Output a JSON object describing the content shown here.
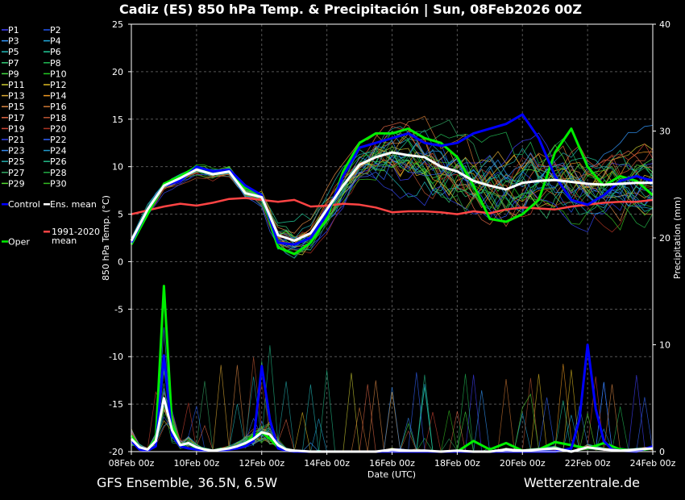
{
  "chart_data": {
    "type": "line",
    "title": "Cadiz  (ES)  850 hPa Temp. & Precipitación | Sun, 08Feb2026 00Z",
    "ylabel_left": "850 hPa Temp. (°C)",
    "ylabel_right": "Precipitation (mm)",
    "xlabel": "Date (UTC)",
    "ylim_left": [
      -20,
      25
    ],
    "ylim_right": [
      0,
      40
    ],
    "yticks_left": [
      25,
      20,
      15,
      10,
      5,
      0,
      -5,
      -10,
      -15,
      -20
    ],
    "yticks_right": [
      40,
      30,
      20,
      10,
      0
    ],
    "x_hours_range": [
      0,
      384
    ],
    "xticks": [
      "08Feb 00z",
      "10Feb 00z",
      "12Feb 00z",
      "14Feb 00z",
      "16Feb 00z",
      "18Feb 00z",
      "20Feb 00z",
      "22Feb 00z",
      "24Feb 00z"
    ],
    "grid": true,
    "footer_left": "GFS Ensemble, 36.5N, 6.5W",
    "footer_right": "Wetterzentrale.de",
    "legend": [
      {
        "label": "P1",
        "color": "#4040ff"
      },
      {
        "label": "P2",
        "color": "#2255ee"
      },
      {
        "label": "P3",
        "color": "#3399ff"
      },
      {
        "label": "P4",
        "color": "#22aadd"
      },
      {
        "label": "P5",
        "color": "#22bbbb"
      },
      {
        "label": "P6",
        "color": "#22cc99"
      },
      {
        "label": "P7",
        "color": "#33cc77"
      },
      {
        "label": "P8",
        "color": "#22bb55"
      },
      {
        "label": "P9",
        "color": "#44dd44"
      },
      {
        "label": "P10",
        "color": "#22cc22"
      },
      {
        "label": "P11",
        "color": "#cccc33"
      },
      {
        "label": "P12",
        "color": "#ddbb22"
      },
      {
        "label": "P13",
        "color": "#ddaa33"
      },
      {
        "label": "P14",
        "color": "#ee9922"
      },
      {
        "label": "P15",
        "color": "#dd8844"
      },
      {
        "label": "P16",
        "color": "#cc7733"
      },
      {
        "label": "P17",
        "color": "#dd6644"
      },
      {
        "label": "P18",
        "color": "#bb5533"
      },
      {
        "label": "P19",
        "color": "#cc4433"
      },
      {
        "label": "P20",
        "color": "#aa3322"
      },
      {
        "label": "P21",
        "color": "#3344ee"
      },
      {
        "label": "P22",
        "color": "#3366ff"
      },
      {
        "label": "P23",
        "color": "#3388ee"
      },
      {
        "label": "P24",
        "color": "#2299cc"
      },
      {
        "label": "P25",
        "color": "#22aaaa"
      },
      {
        "label": "P26",
        "color": "#22bb88"
      },
      {
        "label": "P27",
        "color": "#33aa66"
      },
      {
        "label": "P28",
        "color": "#22aa44"
      },
      {
        "label": "P29",
        "color": "#55dd33"
      },
      {
        "label": "P30",
        "color": "#33bb22"
      },
      {
        "label": "Control",
        "color": "#0000ff"
      },
      {
        "label": "Ens. mean",
        "color": "#ffffff"
      },
      {
        "label": "1991-2020 mean",
        "color": "#ff4444"
      },
      {
        "label": "Oper",
        "color": "#00ee00"
      }
    ],
    "series": [
      {
        "name": "Ens. mean",
        "color": "#ffffff",
        "axis": "temp",
        "hours": [
          0,
          12,
          24,
          36,
          48,
          60,
          72,
          84,
          96,
          108,
          120,
          132,
          144,
          156,
          168,
          180,
          192,
          204,
          216,
          228,
          240,
          252,
          264,
          276,
          288,
          300,
          312,
          324,
          336,
          348,
          360,
          372,
          384
        ],
        "values": [
          2.2,
          5.5,
          8.0,
          8.8,
          9.7,
          9.2,
          9.5,
          7.2,
          6.8,
          2.8,
          2.2,
          3.0,
          5.5,
          8.0,
          10.2,
          11.0,
          11.5,
          11.2,
          11.0,
          10.0,
          9.5,
          8.5,
          8.0,
          7.6,
          8.3,
          8.5,
          8.6,
          8.4,
          8.2,
          8.1,
          8.2,
          8.3,
          8.3
        ]
      },
      {
        "name": "Control",
        "color": "#0000ff",
        "axis": "temp",
        "hours": [
          0,
          12,
          24,
          36,
          48,
          60,
          72,
          84,
          96,
          108,
          120,
          132,
          144,
          156,
          168,
          180,
          192,
          204,
          216,
          228,
          240,
          252,
          264,
          276,
          288,
          300,
          312,
          324,
          336,
          348,
          360,
          372,
          384
        ],
        "values": [
          2.0,
          5.5,
          8.0,
          8.5,
          10.0,
          9.5,
          9.7,
          8.0,
          7.0,
          2.0,
          1.8,
          2.5,
          5.0,
          9.0,
          12.0,
          12.5,
          13.0,
          13.5,
          12.5,
          12.2,
          12.5,
          13.5,
          14.0,
          14.5,
          15.5,
          13.0,
          9.0,
          6.5,
          6.0,
          7.0,
          8.5,
          9.0,
          8.5
        ]
      },
      {
        "name": "Oper",
        "color": "#00ee00",
        "axis": "temp",
        "hours": [
          0,
          12,
          24,
          36,
          48,
          60,
          72,
          84,
          96,
          108,
          120,
          132,
          144,
          156,
          168,
          180,
          192,
          204,
          216,
          228,
          240,
          252,
          264,
          276,
          288,
          300,
          312,
          324,
          336,
          348,
          360,
          372,
          384
        ],
        "values": [
          1.8,
          5.0,
          8.2,
          9.0,
          10.0,
          9.5,
          9.5,
          7.8,
          7.0,
          1.5,
          0.8,
          2.0,
          4.5,
          9.5,
          12.5,
          13.5,
          13.5,
          14.0,
          13.0,
          12.5,
          11.0,
          8.0,
          4.5,
          4.2,
          5.0,
          6.5,
          11.5,
          14.0,
          10.0,
          8.0,
          9.0,
          8.5,
          7.0
        ]
      },
      {
        "name": "1991-2020 mean",
        "color": "#ff4444",
        "axis": "temp",
        "hours": [
          0,
          12,
          24,
          36,
          48,
          60,
          72,
          84,
          96,
          108,
          120,
          132,
          144,
          156,
          168,
          180,
          192,
          204,
          216,
          228,
          240,
          252,
          264,
          276,
          288,
          300,
          312,
          324,
          336,
          348,
          360,
          372,
          384
        ],
        "values": [
          5.0,
          5.4,
          5.8,
          6.1,
          5.9,
          6.2,
          6.6,
          6.7,
          6.5,
          6.3,
          6.5,
          5.8,
          5.9,
          6.1,
          6.0,
          5.7,
          5.2,
          5.3,
          5.3,
          5.2,
          5.0,
          5.3,
          5.1,
          5.5,
          5.7,
          5.6,
          5.5,
          5.8,
          6.0,
          6.2,
          6.3,
          6.3,
          6.5
        ]
      },
      {
        "name": "Ens. mean precip",
        "color": "#ffffff",
        "axis": "precip",
        "hours": [
          0,
          6,
          12,
          18,
          24,
          30,
          36,
          42,
          48,
          54,
          60,
          66,
          72,
          78,
          84,
          90,
          96,
          102,
          108,
          114,
          120,
          132,
          144,
          156,
          168,
          180,
          192,
          204,
          216,
          228,
          240,
          252,
          264,
          276,
          288,
          300,
          312,
          324,
          336,
          348,
          360,
          372,
          384
        ],
        "values": [
          1.2,
          0.4,
          0.2,
          1.0,
          5.0,
          2.0,
          0.6,
          0.8,
          0.4,
          0.2,
          0.1,
          0.2,
          0.3,
          0.5,
          0.8,
          1.2,
          1.8,
          1.6,
          0.6,
          0.2,
          0.1,
          0.0,
          0.0,
          0.0,
          0.0,
          0.0,
          0.2,
          0.1,
          0.1,
          0.0,
          0.1,
          0.0,
          0.0,
          0.2,
          0.1,
          0.2,
          0.3,
          0.0,
          0.4,
          0.2,
          0.1,
          0.2,
          0.3
        ]
      },
      {
        "name": "Control precip",
        "color": "#0000ff",
        "axis": "precip",
        "hours": [
          0,
          6,
          12,
          18,
          24,
          30,
          36,
          42,
          48,
          54,
          60,
          66,
          72,
          78,
          84,
          90,
          96,
          102,
          108,
          114,
          120,
          168,
          216,
          240,
          288,
          312,
          324,
          330,
          336,
          342,
          348,
          354,
          360,
          372,
          384
        ],
        "values": [
          1.0,
          0.2,
          0.1,
          0.5,
          9.0,
          1.5,
          0.5,
          0.3,
          0.2,
          0.1,
          0.1,
          0.1,
          0.2,
          0.3,
          0.5,
          1.0,
          8.0,
          3.0,
          0.3,
          0.1,
          0.0,
          0.0,
          0.0,
          0.0,
          0.0,
          0.0,
          0.3,
          3.0,
          10.0,
          4.0,
          1.0,
          0.2,
          0.1,
          0.0,
          0.5
        ]
      },
      {
        "name": "Oper precip",
        "color": "#00ee00",
        "axis": "precip",
        "hours": [
          0,
          6,
          12,
          18,
          24,
          30,
          36,
          42,
          48,
          54,
          60,
          66,
          72,
          78,
          84,
          90,
          96,
          102,
          108,
          114,
          120,
          168,
          216,
          240,
          252,
          264,
          276,
          288,
          300,
          312,
          324,
          336,
          348,
          360,
          372,
          384
        ],
        "values": [
          1.5,
          0.3,
          0.2,
          1.2,
          15.5,
          2.5,
          0.5,
          0.8,
          0.3,
          0.2,
          0.1,
          0.2,
          0.3,
          0.4,
          0.8,
          1.5,
          1.8,
          1.2,
          0.4,
          0.2,
          0.0,
          0.0,
          0.0,
          0.0,
          1.0,
          0.2,
          0.8,
          0.1,
          0.2,
          0.9,
          0.6,
          0.3,
          0.8,
          0.2,
          0.1,
          0.3
        ]
      }
    ]
  }
}
